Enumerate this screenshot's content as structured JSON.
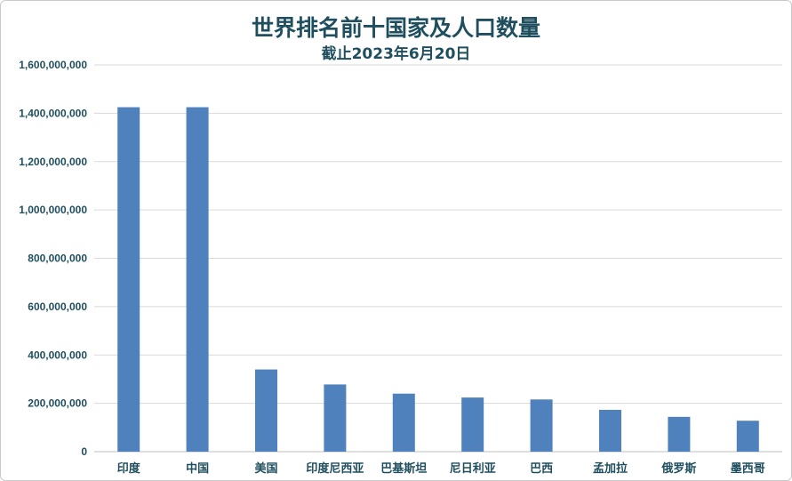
{
  "chart_data": {
    "type": "bar",
    "title": "世界排名前十国家及人口数量",
    "subtitle": "截止2023年6月20日",
    "categories": [
      "印度",
      "中国",
      "美国",
      "印度尼西亚",
      "巴基斯坦",
      "尼日利亚",
      "巴西",
      "孟加拉",
      "俄罗斯",
      "墨西哥"
    ],
    "values": [
      1425000000,
      1425000000,
      340000000,
      278000000,
      240000000,
      224000000,
      216000000,
      173000000,
      144000000,
      128000000
    ],
    "ylim": [
      0,
      1600000000
    ],
    "yticks": [
      0,
      200000000,
      400000000,
      600000000,
      800000000,
      1000000000,
      1200000000,
      1400000000,
      1600000000
    ],
    "ytick_labels": [
      "0",
      "200,000,000",
      "400,000,000",
      "600,000,000",
      "800,000,000",
      "1,000,000,000",
      "1,200,000,000",
      "1,400,000,000",
      "1,600,000,000"
    ],
    "grid": true,
    "bar_color": "#4f81bd",
    "grid_color": "#d9d9d9",
    "text_color": "#1f4e5f"
  }
}
